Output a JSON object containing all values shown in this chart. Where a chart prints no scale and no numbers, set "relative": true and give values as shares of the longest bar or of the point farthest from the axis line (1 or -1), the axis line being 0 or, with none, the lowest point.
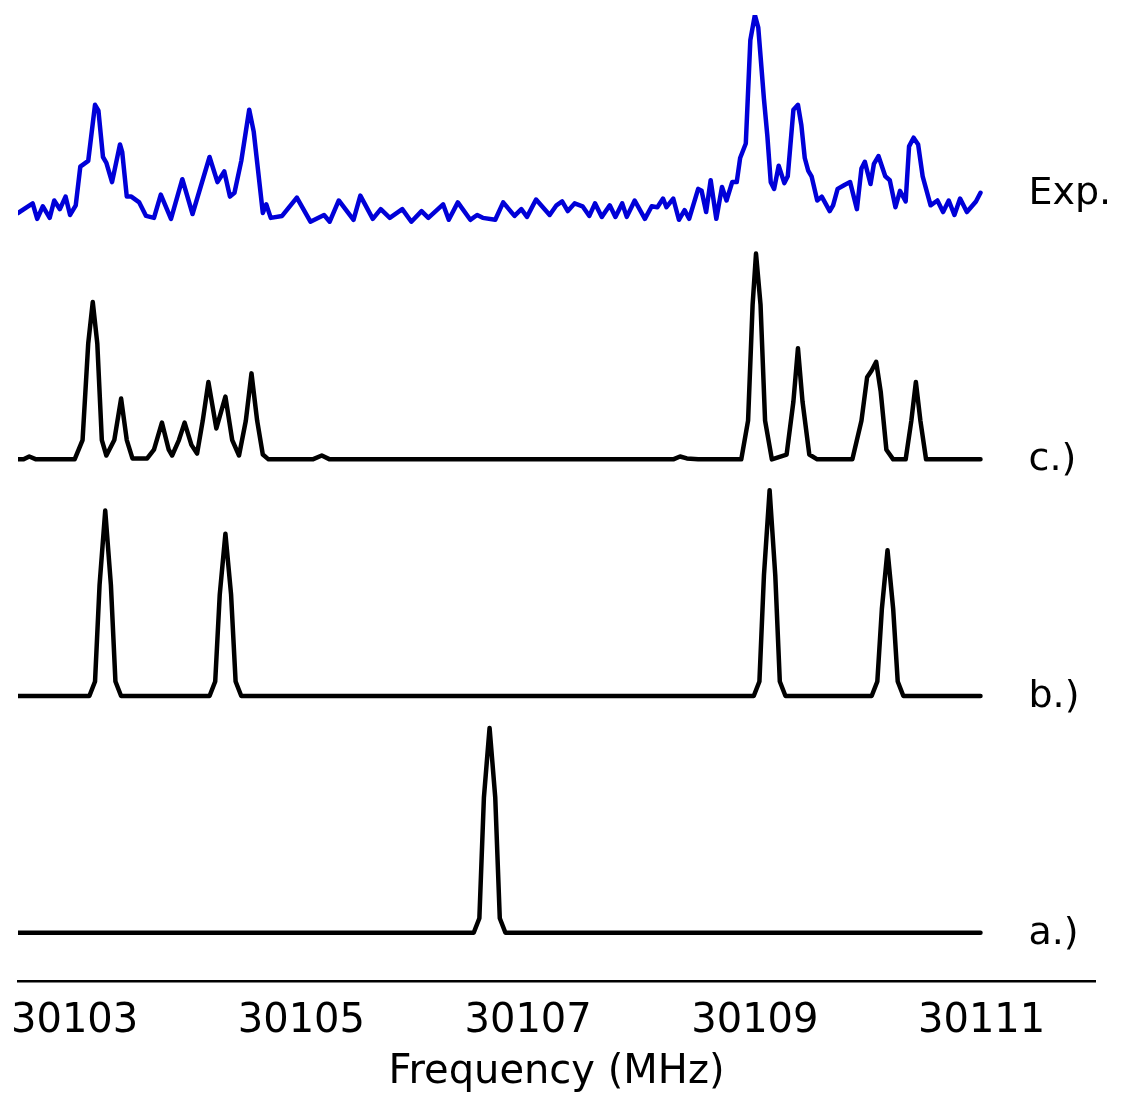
{
  "chart_data": {
    "type": "line",
    "relative": true,
    "xlabel": "Frequency (MHz)",
    "xlim": [
      30102.5,
      30112
    ],
    "xticks": [
      30103,
      30105,
      30107,
      30109,
      30111
    ],
    "grid": false,
    "legend": false,
    "series": [
      {
        "name": "Exp.",
        "color": "#0000d8",
        "x": [
          30102.5,
          30102.63,
          30102.67,
          30102.72,
          30102.78,
          30102.82,
          30102.87,
          30102.92,
          30102.96,
          30103.01,
          30103.05,
          30103.12,
          30103.18,
          30103.21,
          30103.25,
          30103.28,
          30103.33,
          30103.4,
          30103.42,
          30103.46,
          30103.5,
          30103.57,
          30103.63,
          30103.7,
          30103.76,
          30103.85,
          30103.95,
          30104.04,
          30104.19,
          30104.26,
          30104.32,
          30104.37,
          30104.41,
          30104.47,
          30104.54,
          30104.58,
          30104.66,
          30104.69,
          30104.73,
          30104.83,
          30104.96,
          30105.08,
          30105.2,
          30105.25,
          30105.33,
          30105.46,
          30105.52,
          30105.63,
          30105.7,
          30105.78,
          30105.89,
          30105.97,
          30106.06,
          30106.12,
          30106.25,
          30106.3,
          30106.38,
          30106.49,
          30106.55,
          30106.6,
          30106.71,
          30106.78,
          30106.88,
          30106.94,
          30106.99,
          30107.07,
          30107.19,
          30107.25,
          30107.3,
          30107.35,
          30107.41,
          30107.48,
          30107.54,
          30107.59,
          30107.65,
          30107.72,
          30107.77,
          30107.83,
          30107.87,
          30107.94,
          30108.03,
          30108.09,
          30108.14,
          30108.19,
          30108.22,
          30108.28,
          30108.33,
          30108.38,
          30108.42,
          30108.5,
          30108.53,
          30108.57,
          30108.61,
          30108.66,
          30108.71,
          30108.75,
          30108.8,
          30108.84,
          30108.87,
          30108.92,
          30108.96,
          30109.0,
          30109.03,
          30109.08,
          30109.11,
          30109.14,
          30109.17,
          30109.21,
          30109.26,
          30109.29,
          30109.34,
          30109.38,
          30109.41,
          30109.44,
          30109.47,
          30109.5,
          30109.55,
          30109.59,
          30109.66,
          30109.69,
          30109.73,
          30109.79,
          30109.84,
          30109.9,
          30109.94,
          30109.97,
          30110.02,
          30110.05,
          30110.09,
          30110.15,
          30110.19,
          30110.24,
          30110.28,
          30110.33,
          30110.36,
          30110.4,
          30110.44,
          30110.48,
          30110.55,
          30110.61,
          30110.66,
          30110.71,
          30110.76,
          30110.81,
          30110.87,
          30110.95,
          30110.99
        ],
        "values": [
          0.795,
          0.805,
          0.789,
          0.802,
          0.79,
          0.808,
          0.799,
          0.812,
          0.793,
          0.803,
          0.843,
          0.849,
          0.907,
          0.901,
          0.853,
          0.847,
          0.827,
          0.866,
          0.858,
          0.812,
          0.812,
          0.806,
          0.792,
          0.79,
          0.814,
          0.789,
          0.83,
          0.794,
          0.853,
          0.827,
          0.838,
          0.812,
          0.816,
          0.849,
          0.902,
          0.879,
          0.795,
          0.804,
          0.79,
          0.792,
          0.811,
          0.786,
          0.793,
          0.786,
          0.808,
          0.788,
          0.813,
          0.789,
          0.799,
          0.79,
          0.799,
          0.786,
          0.797,
          0.79,
          0.804,
          0.788,
          0.806,
          0.788,
          0.793,
          0.79,
          0.788,
          0.806,
          0.792,
          0.799,
          0.791,
          0.809,
          0.793,
          0.803,
          0.807,
          0.797,
          0.805,
          0.802,
          0.792,
          0.805,
          0.791,
          0.803,
          0.791,
          0.805,
          0.791,
          0.808,
          0.789,
          0.802,
          0.801,
          0.81,
          0.801,
          0.81,
          0.788,
          0.798,
          0.789,
          0.82,
          0.818,
          0.796,
          0.829,
          0.789,
          0.822,
          0.808,
          0.827,
          0.827,
          0.852,
          0.867,
          0.974,
          1.0,
          0.987,
          0.913,
          0.875,
          0.827,
          0.82,
          0.844,
          0.826,
          0.833,
          0.902,
          0.907,
          0.886,
          0.852,
          0.839,
          0.833,
          0.808,
          0.812,
          0.797,
          0.803,
          0.82,
          0.824,
          0.827,
          0.799,
          0.841,
          0.848,
          0.825,
          0.846,
          0.854,
          0.833,
          0.829,
          0.801,
          0.818,
          0.807,
          0.864,
          0.873,
          0.866,
          0.833,
          0.803,
          0.808,
          0.796,
          0.808,
          0.793,
          0.81,
          0.796,
          0.807,
          0.816
        ]
      },
      {
        "name": "c.)",
        "color": "#000000",
        "x": [
          30102.5,
          30102.55,
          30102.6,
          30102.66,
          30103.0,
          30103.07,
          30103.12,
          30103.16,
          30103.2,
          30103.24,
          30103.28,
          30103.35,
          30103.41,
          30103.46,
          30103.51,
          30103.64,
          30103.7,
          30103.77,
          30103.83,
          30103.86,
          30103.92,
          30103.97,
          30104.03,
          30104.08,
          30104.13,
          30104.18,
          30104.25,
          30104.33,
          30104.39,
          30104.45,
          30104.51,
          30104.56,
          30104.61,
          30104.66,
          30104.71,
          30105.1,
          30105.18,
          30105.25,
          30108.28,
          30108.34,
          30108.4,
          30108.5,
          30108.88,
          30108.94,
          30108.98,
          30109.01,
          30109.05,
          30109.09,
          30109.15,
          30109.28,
          30109.34,
          30109.38,
          30109.42,
          30109.48,
          30109.55,
          30109.86,
          30109.94,
          30109.99,
          30110.03,
          30110.07,
          30110.11,
          30110.16,
          30110.22,
          30110.33,
          30110.38,
          30110.42,
          30110.46,
          30110.51,
          30110.99
        ],
        "values": [
          0.54,
          0.54,
          0.543,
          0.54,
          0.54,
          0.56,
          0.66,
          0.703,
          0.66,
          0.56,
          0.544,
          0.56,
          0.603,
          0.56,
          0.541,
          0.541,
          0.55,
          0.578,
          0.55,
          0.544,
          0.56,
          0.578,
          0.555,
          0.546,
          0.58,
          0.62,
          0.572,
          0.605,
          0.56,
          0.544,
          0.58,
          0.629,
          0.58,
          0.545,
          0.54,
          0.54,
          0.544,
          0.54,
          0.54,
          0.543,
          0.541,
          0.54,
          0.54,
          0.58,
          0.7,
          0.753,
          0.7,
          0.58,
          0.54,
          0.545,
          0.6,
          0.655,
          0.6,
          0.545,
          0.54,
          0.54,
          0.58,
          0.625,
          0.632,
          0.641,
          0.61,
          0.55,
          0.54,
          0.54,
          0.58,
          0.62,
          0.58,
          0.54,
          0.54
        ]
      },
      {
        "name": "b.)",
        "color": "#000000",
        "x": [
          30102.5,
          30103.13,
          30103.18,
          30103.22,
          30103.27,
          30103.32,
          30103.36,
          30103.41,
          30104.19,
          30104.24,
          30104.28,
          30104.33,
          30104.38,
          30104.42,
          30104.47,
          30108.99,
          30109.04,
          30109.08,
          30109.13,
          30109.18,
          30109.22,
          30109.27,
          30110.03,
          30110.08,
          30110.12,
          30110.17,
          30110.22,
          30110.26,
          30110.31,
          30110.99
        ],
        "values": [
          0.295,
          0.295,
          0.31,
          0.41,
          0.487,
          0.41,
          0.31,
          0.295,
          0.295,
          0.31,
          0.4,
          0.463,
          0.4,
          0.31,
          0.295,
          0.295,
          0.31,
          0.42,
          0.508,
          0.42,
          0.31,
          0.295,
          0.295,
          0.31,
          0.385,
          0.446,
          0.385,
          0.31,
          0.295,
          0.295
        ]
      },
      {
        "name": "a.)",
        "color": "#000000",
        "x": [
          30102.5,
          30106.52,
          30106.57,
          30106.61,
          30106.66,
          30106.71,
          30106.75,
          30106.8,
          30110.99
        ],
        "values": [
          0.05,
          0.05,
          0.065,
          0.19,
          0.262,
          0.19,
          0.065,
          0.05,
          0.05
        ]
      }
    ]
  }
}
